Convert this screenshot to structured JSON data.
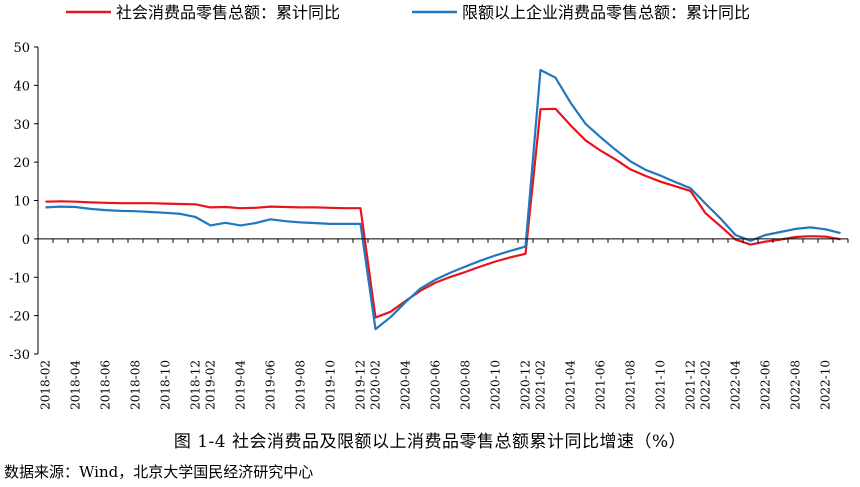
{
  "chart_data": {
    "type": "line",
    "title": "",
    "xlabel": "",
    "ylabel": "",
    "ylim": [
      -30,
      50
    ],
    "yticks": [
      -30,
      -20,
      -10,
      0,
      10,
      20,
      30,
      40,
      50
    ],
    "grid": false,
    "legend_position": "top",
    "x": [
      "2018-02",
      "2018-03",
      "2018-04",
      "2018-05",
      "2018-06",
      "2018-07",
      "2018-08",
      "2018-09",
      "2018-10",
      "2018-11",
      "2018-12",
      "2019-02",
      "2019-03",
      "2019-04",
      "2019-05",
      "2019-06",
      "2019-07",
      "2019-08",
      "2019-09",
      "2019-10",
      "2019-11",
      "2019-12",
      "2020-02",
      "2020-03",
      "2020-04",
      "2020-05",
      "2020-06",
      "2020-07",
      "2020-08",
      "2020-09",
      "2020-10",
      "2020-11",
      "2020-12",
      "2021-02",
      "2021-03",
      "2021-04",
      "2021-05",
      "2021-06",
      "2021-07",
      "2021-08",
      "2021-09",
      "2021-10",
      "2021-11",
      "2021-12",
      "2022-02",
      "2022-03",
      "2022-04",
      "2022-05",
      "2022-06",
      "2022-07",
      "2022-08",
      "2022-09",
      "2022-10",
      "2022-11"
    ],
    "xtick_labels": [
      "2018-02",
      "2018-04",
      "2018-06",
      "2018-08",
      "2018-10",
      "2018-12",
      "2019-02",
      "2019-04",
      "2019-06",
      "2019-08",
      "2019-10",
      "2019-12",
      "2020-02",
      "2020-04",
      "2020-06",
      "2020-08",
      "2020-10",
      "2020-12",
      "2021-02",
      "2021-04",
      "2021-06",
      "2021-08",
      "2021-10",
      "2021-12",
      "2022-02",
      "2022-04",
      "2022-06",
      "2022-08",
      "2022-10"
    ],
    "series": [
      {
        "name": "社会消费品零售总额：累计同比",
        "color": "#e8141c",
        "values": [
          9.7,
          9.8,
          9.7,
          9.5,
          9.4,
          9.3,
          9.3,
          9.3,
          9.2,
          9.1,
          9.0,
          8.2,
          8.3,
          8.0,
          8.1,
          8.4,
          8.3,
          8.2,
          8.2,
          8.1,
          8.0,
          8.0,
          -20.5,
          -19.0,
          -16.2,
          -13.5,
          -11.4,
          -9.9,
          -8.6,
          -7.2,
          -5.9,
          -4.8,
          -3.9,
          33.8,
          33.9,
          29.6,
          25.7,
          23.0,
          20.7,
          18.1,
          16.4,
          14.9,
          13.7,
          12.5,
          6.7,
          3.3,
          -0.2,
          -1.5,
          -0.7,
          -0.2,
          0.5,
          0.7,
          0.6,
          -0.1
        ]
      },
      {
        "name": "限额以上企业消费品零售总额：累计同比",
        "color": "#1f78c1",
        "values": [
          8.2,
          8.4,
          8.3,
          7.8,
          7.5,
          7.3,
          7.2,
          7.0,
          6.8,
          6.5,
          5.7,
          3.5,
          4.2,
          3.5,
          4.1,
          5.1,
          4.6,
          4.3,
          4.1,
          3.9,
          3.9,
          3.9,
          -23.5,
          -20.4,
          -16.5,
          -12.9,
          -10.6,
          -8.8,
          -7.2,
          -5.7,
          -4.3,
          -3.1,
          -2.0,
          44.0,
          42.0,
          35.5,
          30.0,
          26.5,
          23.2,
          20.2,
          18.0,
          16.5,
          14.8,
          13.2,
          9.2,
          5.3,
          1.0,
          -0.5,
          1.0,
          1.8,
          2.6,
          3.0,
          2.5,
          1.5
        ]
      }
    ]
  },
  "caption": "图 1-4 社会消费品及限额以上消费品零售总额累计同比增速（%）",
  "source": "数据来源：Wind，北京大学国民经济研究中心"
}
